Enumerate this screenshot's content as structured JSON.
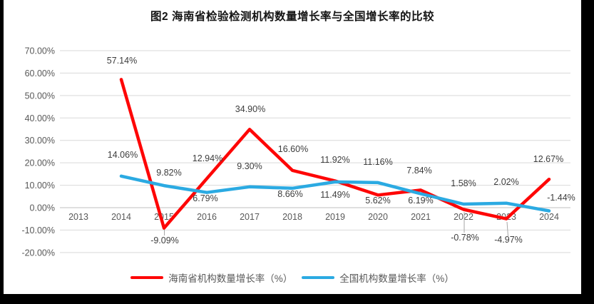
{
  "chart_data": {
    "type": "line",
    "title": "图2 海南省检验检测机构数量增长率与全国增长率的比较",
    "categories": [
      "2013",
      "2014",
      "2015",
      "2016",
      "2017",
      "2018",
      "2019",
      "2020",
      "2021",
      "2022",
      "2023",
      "2024"
    ],
    "y_ticks": [
      "70.00%",
      "60.00%",
      "50.00%",
      "40.00%",
      "30.00%",
      "20.00%",
      "10.00%",
      "0.00%",
      "-10.00%",
      "-20.00%"
    ],
    "ylim": [
      -20,
      70
    ],
    "grid": true,
    "legend_position": "bottom",
    "series": [
      {
        "name": "海南省机构数量增长率（%）",
        "color": "#fe0606",
        "values": [
          null,
          57.14,
          -9.09,
          12.94,
          34.9,
          16.6,
          11.92,
          5.62,
          7.84,
          -0.78,
          -4.97,
          12.67
        ],
        "labels": [
          null,
          "57.14%",
          "-9.09%",
          "12.94%",
          "34.90%",
          "16.60%",
          "11.92%",
          "5.62%",
          "7.84%",
          "-0.78%",
          "-4.97%",
          "12.67%"
        ]
      },
      {
        "name": "全国机构数量增长率（%）",
        "color": "#2baae2",
        "values": [
          null,
          14.06,
          9.82,
          6.79,
          9.3,
          8.66,
          11.49,
          11.16,
          6.19,
          1.58,
          2.02,
          -1.44
        ],
        "labels": [
          null,
          "14.06%",
          "9.82%",
          "6.79%",
          "9.30%",
          "8.66%",
          "11.49%",
          "11.16%",
          "6.19%",
          "1.58%",
          "2.02%",
          "-1.44%"
        ]
      }
    ]
  }
}
